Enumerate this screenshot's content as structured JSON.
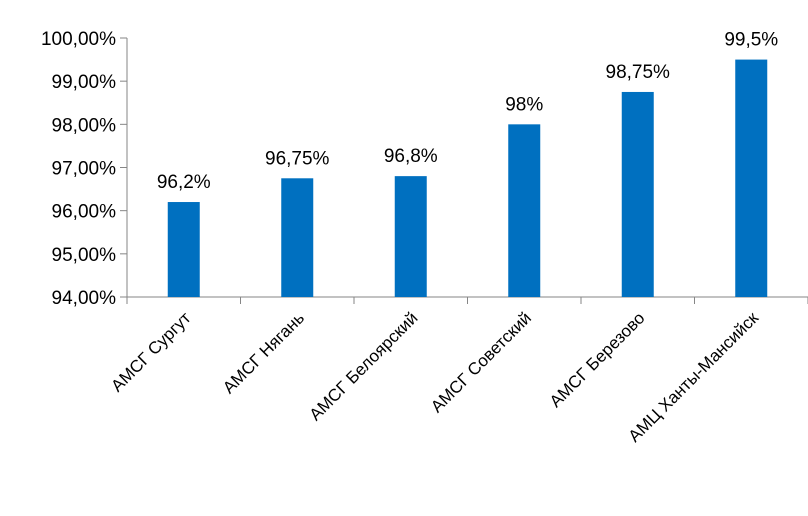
{
  "chart_data": {
    "type": "bar",
    "categories": [
      "АМСГ Сургут",
      "АМСГ Нягань",
      "АМСГ Белоярский",
      "АМСГ Советский",
      "АМСГ Березово",
      "АМЦ Ханты-Мансийск"
    ],
    "values": [
      96.2,
      96.75,
      96.8,
      98,
      98.75,
      99.5
    ],
    "data_labels": [
      "96,2%",
      "96,75%",
      "96,8%",
      "98%",
      "98,75%",
      "99,5%"
    ],
    "y_ticks": [
      94,
      95,
      96,
      97,
      98,
      99,
      100
    ],
    "y_tick_labels": [
      "94,00%",
      "95,00%",
      "96,00%",
      "97,00%",
      "98,00%",
      "99,00%",
      "100,00%"
    ],
    "ylim": [
      94,
      100
    ],
    "title": "",
    "xlabel": "",
    "ylabel": "",
    "grid": false,
    "legend": "none",
    "bar_color": "#0070C0",
    "axis_color": "#868686"
  }
}
